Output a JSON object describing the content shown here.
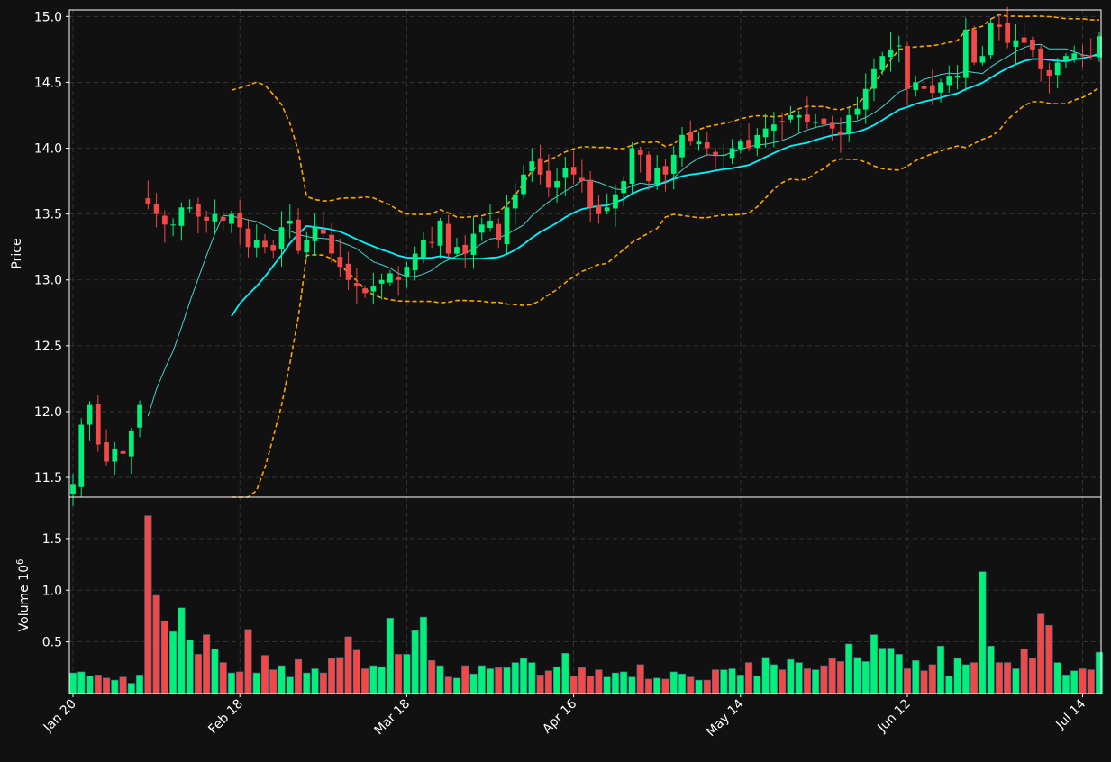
{
  "chart_data": {
    "type": "candlestick",
    "theme": "dark",
    "colors": {
      "background": "#111111",
      "up": "#00F07A",
      "down": "#F24848",
      "grid": "#3a3a3a",
      "text": "#FFFFFF",
      "bollinger": "#FFA500",
      "ma_fast": "#48D1CC",
      "ma_slow": "#00F5FF",
      "axes": "#FFFFFF"
    },
    "grid": true,
    "price_panel": {
      "ylabel": "Price",
      "ylim": [
        11.35,
        15.05
      ],
      "yticks": [
        "11.5",
        "12.0",
        "12.5",
        "13.0",
        "13.5",
        "14.0",
        "14.5",
        "15.0"
      ],
      "ytick_values": [
        11.5,
        12.0,
        12.5,
        13.0,
        13.5,
        14.0,
        14.5,
        15.0
      ]
    },
    "volume_panel": {
      "ylabel": "Volume",
      "ylabel_scale": "10",
      "ylabel_exp": "6",
      "ylim": [
        0,
        1.9
      ],
      "yticks": [
        "0.5",
        "1.0",
        "1.5"
      ],
      "ytick_values": [
        0.5,
        1.0,
        1.5
      ]
    },
    "x_axis": {
      "num_bars": 124,
      "tick_labels": [
        "Jan 20",
        "Feb 18",
        "Mar 18",
        "Apr 16",
        "May 14",
        "Jun 12",
        "Jul 14"
      ],
      "tick_positions": [
        0,
        20,
        40,
        60,
        80,
        100,
        121
      ]
    },
    "anchors": [
      [
        0,
        11.45
      ],
      [
        1,
        11.9
      ],
      [
        2,
        12.05
      ],
      [
        3,
        11.75
      ],
      [
        4,
        11.62
      ],
      [
        5,
        11.72
      ],
      [
        6,
        11.68
      ],
      [
        7,
        11.85
      ],
      [
        8,
        12.05
      ],
      [
        9,
        13.58
      ],
      [
        10,
        13.5
      ],
      [
        11,
        13.42
      ],
      [
        12,
        13.42
      ],
      [
        13,
        13.55
      ],
      [
        14,
        13.55
      ],
      [
        15,
        13.48
      ],
      [
        16,
        13.45
      ],
      [
        17,
        13.5
      ],
      [
        18,
        13.45
      ],
      [
        19,
        13.5
      ],
      [
        20,
        13.4
      ],
      [
        21,
        13.25
      ],
      [
        22,
        13.3
      ],
      [
        23,
        13.25
      ],
      [
        24,
        13.22
      ],
      [
        25,
        13.4
      ],
      [
        26,
        13.45
      ],
      [
        27,
        13.22
      ],
      [
        28,
        13.3
      ],
      [
        29,
        13.4
      ],
      [
        30,
        13.35
      ],
      [
        31,
        13.2
      ],
      [
        32,
        13.1
      ],
      [
        33,
        13.0
      ],
      [
        34,
        12.95
      ],
      [
        35,
        12.9
      ],
      [
        36,
        12.95
      ],
      [
        37,
        13.0
      ],
      [
        38,
        13.05
      ],
      [
        39,
        13.0
      ],
      [
        40,
        13.1
      ],
      [
        41,
        13.2
      ],
      [
        42,
        13.3
      ],
      [
        43,
        13.28
      ],
      [
        44,
        13.45
      ],
      [
        45,
        13.2
      ],
      [
        46,
        13.25
      ],
      [
        47,
        13.2
      ],
      [
        48,
        13.35
      ],
      [
        49,
        13.42
      ],
      [
        50,
        13.45
      ],
      [
        51,
        13.3
      ],
      [
        52,
        13.55
      ],
      [
        53,
        13.65
      ],
      [
        54,
        13.8
      ],
      [
        55,
        13.9
      ],
      [
        56,
        13.8
      ],
      [
        57,
        13.7
      ],
      [
        58,
        13.75
      ],
      [
        59,
        13.85
      ],
      [
        60,
        13.8
      ],
      [
        61,
        13.75
      ],
      [
        62,
        13.55
      ],
      [
        63,
        13.5
      ],
      [
        64,
        13.55
      ],
      [
        65,
        13.65
      ],
      [
        66,
        13.75
      ],
      [
        67,
        14.0
      ],
      [
        68,
        13.95
      ],
      [
        69,
        13.75
      ],
      [
        70,
        13.85
      ],
      [
        71,
        13.8
      ],
      [
        72,
        13.95
      ],
      [
        73,
        14.1
      ],
      [
        74,
        14.05
      ],
      [
        75,
        14.05
      ],
      [
        76,
        14.0
      ],
      [
        77,
        13.95
      ],
      [
        78,
        13.95
      ],
      [
        79,
        14.0
      ],
      [
        80,
        14.05
      ],
      [
        81,
        14.0
      ],
      [
        82,
        14.1
      ],
      [
        83,
        14.15
      ],
      [
        84,
        14.18
      ],
      [
        85,
        14.2
      ],
      [
        86,
        14.25
      ],
      [
        87,
        14.25
      ],
      [
        88,
        14.2
      ],
      [
        89,
        14.2
      ],
      [
        90,
        14.18
      ],
      [
        91,
        14.15
      ],
      [
        92,
        14.1
      ],
      [
        93,
        14.25
      ],
      [
        94,
        14.3
      ],
      [
        95,
        14.45
      ],
      [
        96,
        14.6
      ],
      [
        97,
        14.7
      ],
      [
        98,
        14.75
      ],
      [
        99,
        14.78
      ],
      [
        100,
        14.45
      ],
      [
        101,
        14.5
      ],
      [
        102,
        14.45
      ],
      [
        103,
        14.42
      ],
      [
        104,
        14.5
      ],
      [
        105,
        14.55
      ],
      [
        106,
        14.55
      ],
      [
        107,
        14.9
      ],
      [
        108,
        14.65
      ],
      [
        109,
        14.7
      ],
      [
        110,
        14.95
      ],
      [
        111,
        14.92
      ],
      [
        112,
        14.8
      ],
      [
        113,
        14.82
      ],
      [
        114,
        14.8
      ],
      [
        115,
        14.75
      ],
      [
        116,
        14.6
      ],
      [
        117,
        14.55
      ],
      [
        118,
        14.65
      ],
      [
        119,
        14.7
      ],
      [
        120,
        14.72
      ],
      [
        121,
        14.7
      ],
      [
        122,
        14.7
      ],
      [
        123,
        14.85
      ]
    ],
    "volume_anchors": [
      [
        0,
        0.2
      ],
      [
        1,
        0.21
      ],
      [
        2,
        0.17
      ],
      [
        3,
        0.18
      ],
      [
        4,
        0.15
      ],
      [
        5,
        0.13
      ],
      [
        6,
        0.16
      ],
      [
        7,
        0.1
      ],
      [
        8,
        0.18
      ],
      [
        9,
        1.72
      ],
      [
        10,
        0.95
      ],
      [
        11,
        0.7
      ],
      [
        12,
        0.6
      ],
      [
        13,
        0.83
      ],
      [
        14,
        0.52
      ],
      [
        15,
        0.38
      ],
      [
        16,
        0.57
      ],
      [
        17,
        0.43
      ],
      [
        18,
        0.3
      ],
      [
        19,
        0.2
      ],
      [
        20,
        0.21
      ],
      [
        21,
        0.62
      ],
      [
        22,
        0.2
      ],
      [
        23,
        0.37
      ],
      [
        24,
        0.23
      ],
      [
        25,
        0.27
      ],
      [
        26,
        0.16
      ],
      [
        27,
        0.33
      ],
      [
        28,
        0.2
      ],
      [
        29,
        0.24
      ],
      [
        30,
        0.2
      ],
      [
        31,
        0.34
      ],
      [
        32,
        0.35
      ],
      [
        33,
        0.55
      ],
      [
        34,
        0.42
      ],
      [
        35,
        0.24
      ],
      [
        36,
        0.27
      ],
      [
        37,
        0.26
      ],
      [
        38,
        0.73
      ],
      [
        39,
        0.38
      ],
      [
        40,
        0.38
      ],
      [
        41,
        0.61
      ],
      [
        42,
        0.74
      ],
      [
        43,
        0.32
      ],
      [
        44,
        0.27
      ],
      [
        45,
        0.16
      ],
      [
        46,
        0.15
      ],
      [
        47,
        0.27
      ],
      [
        48,
        0.19
      ],
      [
        49,
        0.27
      ],
      [
        50,
        0.24
      ],
      [
        51,
        0.25
      ],
      [
        52,
        0.25
      ],
      [
        53,
        0.3
      ],
      [
        54,
        0.34
      ],
      [
        55,
        0.3
      ],
      [
        56,
        0.18
      ],
      [
        57,
        0.22
      ],
      [
        58,
        0.26
      ],
      [
        59,
        0.39
      ],
      [
        60,
        0.17
      ],
      [
        61,
        0.25
      ],
      [
        62,
        0.17
      ],
      [
        63,
        0.23
      ],
      [
        64,
        0.16
      ],
      [
        65,
        0.2
      ],
      [
        66,
        0.21
      ],
      [
        67,
        0.16
      ],
      [
        68,
        0.28
      ],
      [
        69,
        0.14
      ],
      [
        70,
        0.15
      ],
      [
        71,
        0.14
      ],
      [
        72,
        0.21
      ],
      [
        73,
        0.19
      ],
      [
        74,
        0.16
      ],
      [
        75,
        0.13
      ],
      [
        76,
        0.13
      ],
      [
        77,
        0.23
      ],
      [
        78,
        0.23
      ],
      [
        79,
        0.24
      ],
      [
        80,
        0.18
      ],
      [
        81,
        0.3
      ],
      [
        82,
        0.17
      ],
      [
        83,
        0.35
      ],
      [
        84,
        0.28
      ],
      [
        85,
        0.23
      ],
      [
        86,
        0.33
      ],
      [
        87,
        0.3
      ],
      [
        88,
        0.24
      ],
      [
        89,
        0.23
      ],
      [
        90,
        0.27
      ],
      [
        91,
        0.34
      ],
      [
        92,
        0.31
      ],
      [
        93,
        0.48
      ],
      [
        94,
        0.35
      ],
      [
        95,
        0.31
      ],
      [
        96,
        0.57
      ],
      [
        97,
        0.44
      ],
      [
        98,
        0.44
      ],
      [
        99,
        0.38
      ],
      [
        100,
        0.24
      ],
      [
        101,
        0.32
      ],
      [
        102,
        0.22
      ],
      [
        103,
        0.28
      ],
      [
        104,
        0.46
      ],
      [
        105,
        0.17
      ],
      [
        106,
        0.34
      ],
      [
        107,
        0.28
      ],
      [
        108,
        0.3
      ],
      [
        109,
        1.18
      ],
      [
        110,
        0.46
      ],
      [
        111,
        0.3
      ],
      [
        112,
        0.3
      ],
      [
        113,
        0.24
      ],
      [
        114,
        0.43
      ],
      [
        115,
        0.34
      ],
      [
        116,
        0.77
      ],
      [
        117,
        0.66
      ],
      [
        118,
        0.3
      ],
      [
        119,
        0.18
      ],
      [
        120,
        0.22
      ],
      [
        121,
        0.24
      ],
      [
        122,
        0.23
      ],
      [
        123,
        0.4
      ]
    ]
  }
}
